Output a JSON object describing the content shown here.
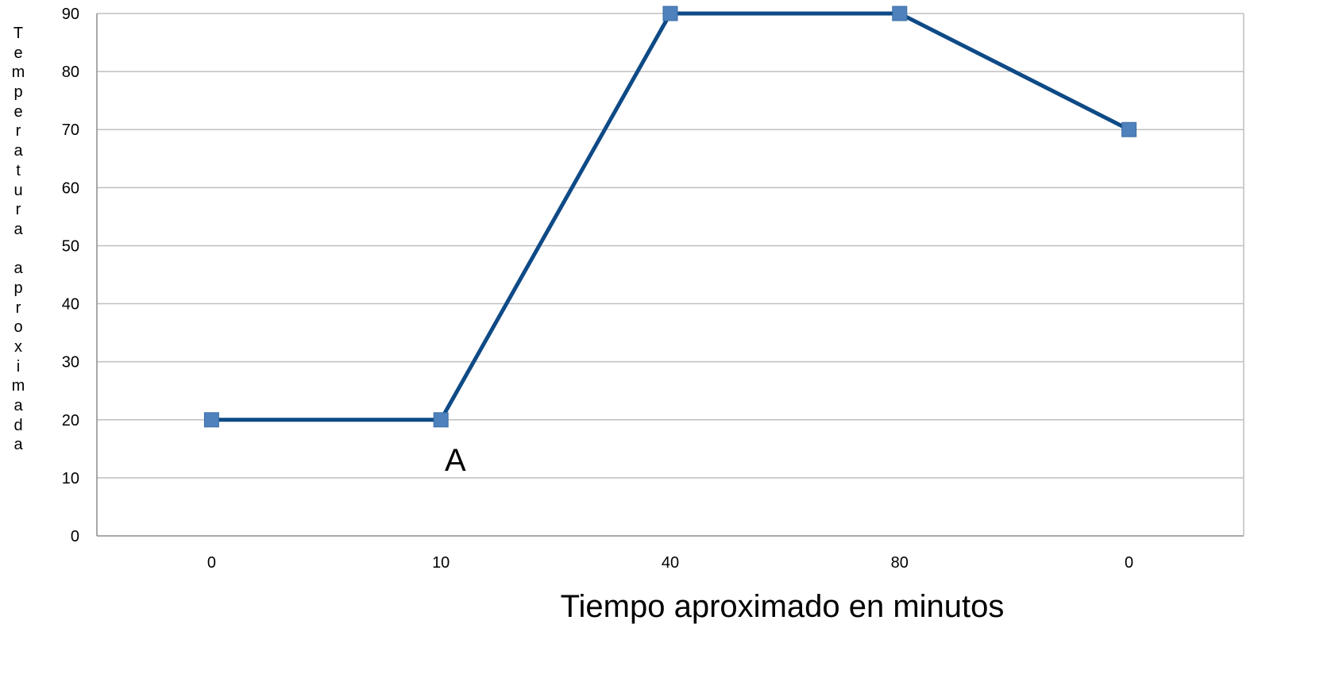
{
  "chart_data": {
    "type": "line",
    "categories": [
      "0",
      "10",
      "40",
      "80",
      "0"
    ],
    "series": [
      {
        "values": [
          20,
          20,
          90,
          90,
          70
        ],
        "color": "#0e4a86",
        "marker_color": "#4f81bd"
      }
    ],
    "yticks": [
      "0",
      "10",
      "20",
      "30",
      "40",
      "50",
      "60",
      "70",
      "80",
      "90"
    ],
    "ylim": [
      0,
      90
    ],
    "grid": true,
    "xlabel": "Tiempo aproximado en minutos",
    "ylabel_chars": [
      "T",
      "e",
      "m",
      "p",
      "e",
      "r",
      "a",
      "t",
      "u",
      "r",
      "a",
      " ",
      "a",
      "p",
      "r",
      "o",
      "x",
      "i",
      "m",
      "a",
      "d",
      "a"
    ],
    "annotation": "A"
  }
}
